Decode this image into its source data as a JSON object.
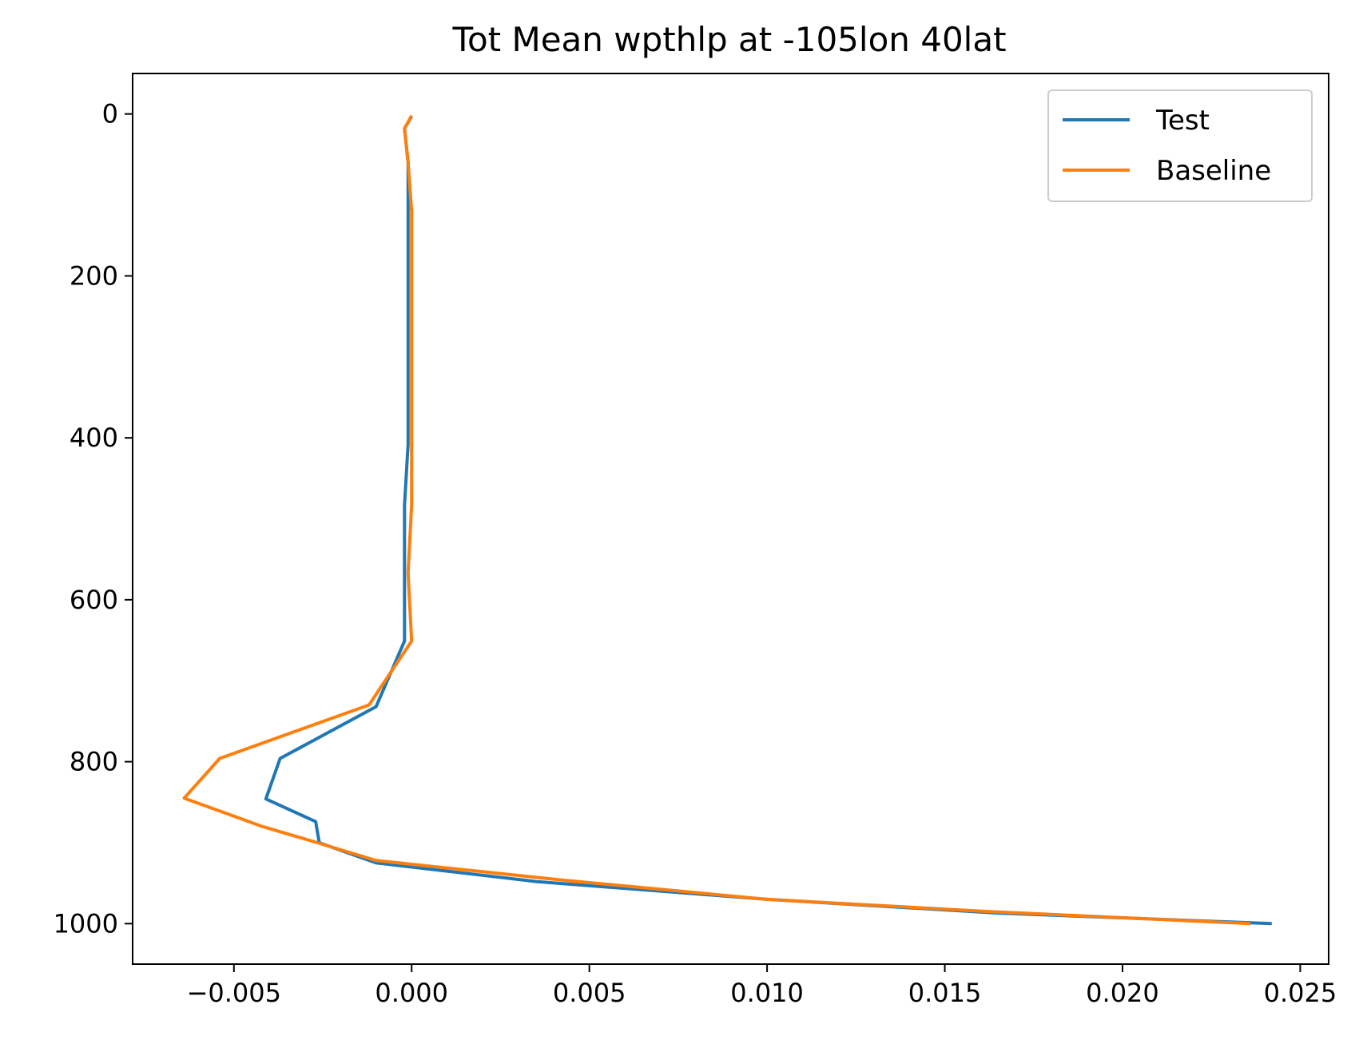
{
  "chart_data": {
    "type": "line",
    "title": "Tot Mean wpthlp at -105lon 40lat",
    "xlabel": "",
    "ylabel": "",
    "xlim": [
      -0.00785,
      0.0258
    ],
    "ylim": [
      1050,
      -50
    ],
    "y_inverted": true,
    "grid": false,
    "legend_position": "top-right",
    "xticks": [
      -0.005,
      0.0,
      0.005,
      0.01,
      0.015,
      0.02,
      0.025
    ],
    "xtick_labels": [
      "−0.005",
      "0.000",
      "0.005",
      "0.010",
      "0.015",
      "0.020",
      "0.025"
    ],
    "yticks": [
      0,
      200,
      400,
      600,
      800,
      1000
    ],
    "ytick_labels": [
      "0",
      "200",
      "400",
      "600",
      "800",
      "1000"
    ],
    "series": [
      {
        "name": "Test",
        "color": "#1f77b4",
        "points": [
          [
            0.0,
            3
          ],
          [
            -0.0002,
            18
          ],
          [
            -0.0001,
            60
          ],
          [
            -0.0001,
            120
          ],
          [
            -0.0001,
            200
          ],
          [
            -0.0001,
            300
          ],
          [
            -0.0001,
            408
          ],
          [
            -0.0002,
            483
          ],
          [
            -0.0002,
            560
          ],
          [
            -0.0002,
            651
          ],
          [
            -0.001,
            732
          ],
          [
            -0.0037,
            796
          ],
          [
            -0.0041,
            846
          ],
          [
            -0.0027,
            874
          ],
          [
            -0.0026,
            900
          ],
          [
            -0.001,
            925
          ],
          [
            0.0035,
            948
          ],
          [
            0.01,
            970
          ],
          [
            0.0165,
            987
          ],
          [
            0.0242,
            1000
          ]
        ]
      },
      {
        "name": "Baseline",
        "color": "#ff7f0e",
        "points": [
          [
            0.0,
            2
          ],
          [
            -0.0002,
            18
          ],
          [
            -0.0001,
            60
          ],
          [
            0.0,
            120
          ],
          [
            0.0,
            200
          ],
          [
            0.0,
            300
          ],
          [
            0.0,
            408
          ],
          [
            0.0,
            483
          ],
          [
            -0.0001,
            567
          ],
          [
            0.0,
            651
          ],
          [
            -0.0012,
            730
          ],
          [
            -0.0054,
            796
          ],
          [
            -0.0064,
            845
          ],
          [
            -0.0042,
            880
          ],
          [
            -0.0025,
            902
          ],
          [
            -0.001,
            922
          ],
          [
            0.0042,
            946
          ],
          [
            0.01,
            970
          ],
          [
            0.0162,
            985
          ],
          [
            0.0236,
            1000
          ]
        ]
      }
    ]
  }
}
